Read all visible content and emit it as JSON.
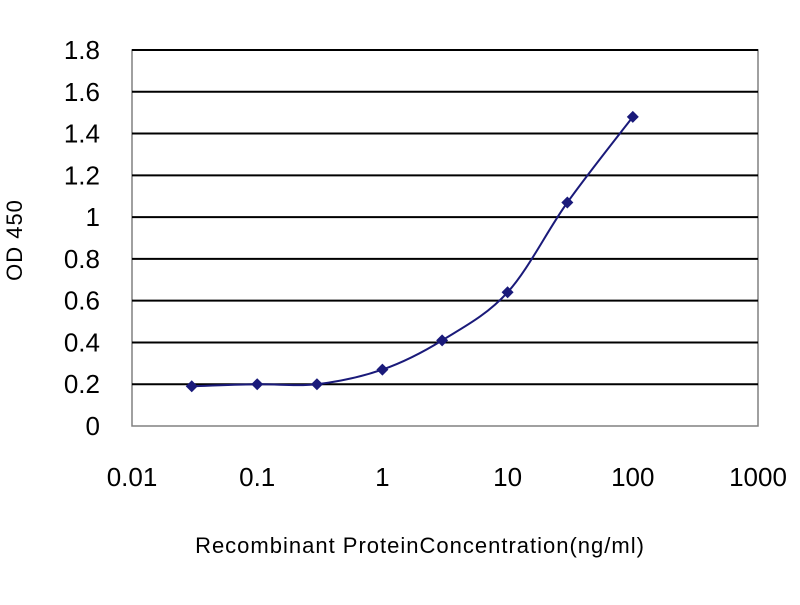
{
  "chart_data": {
    "type": "line",
    "title": "",
    "xlabel": "Recombinant ProteinConcentration(ng/ml)",
    "ylabel": "OD 450",
    "x_scale": "log",
    "xlim": [
      0.01,
      1000
    ],
    "ylim": [
      0,
      1.8
    ],
    "x_ticks": [
      "0.01",
      "0.1",
      "1",
      "10",
      "100",
      "1000"
    ],
    "y_ticks": [
      "0",
      "0.2",
      "0.4",
      "0.6",
      "0.8",
      "1",
      "1.2",
      "1.4",
      "1.6",
      "1.8"
    ],
    "grid": "horizontal",
    "legend": "none",
    "series": [
      {
        "color": "#1a1a7a",
        "x": [
          0.03,
          0.1,
          0.3,
          1,
          3,
          10,
          30,
          100
        ],
        "y": [
          0.19,
          0.2,
          0.2,
          0.27,
          0.41,
          0.64,
          1.07,
          1.48
        ]
      }
    ]
  }
}
